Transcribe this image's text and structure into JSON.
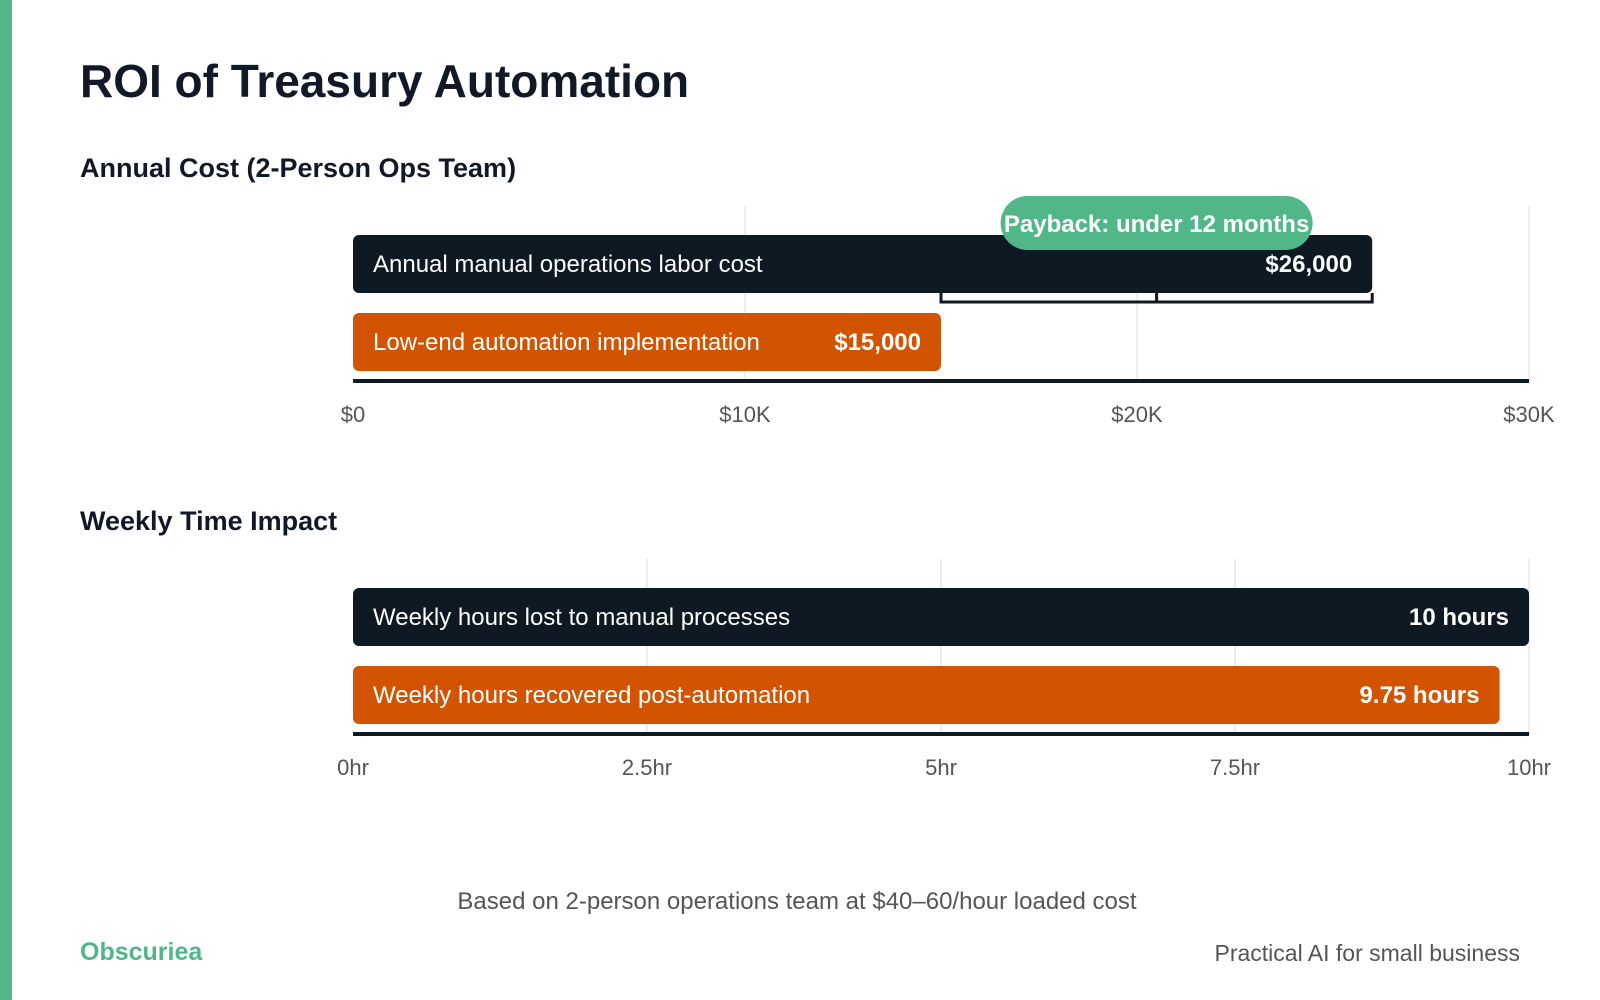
{
  "title": "ROI of Treasury Automation",
  "colors": {
    "accent": "#52b788",
    "dark": "#0f1923",
    "orange": "#d35400",
    "grid": "#e5e7eb",
    "tick": "#555555"
  },
  "chart_data": [
    {
      "type": "bar",
      "orientation": "horizontal",
      "title": "Annual Cost (2-Person Ops Team)",
      "xlim": [
        0,
        30000
      ],
      "ticks": [
        {
          "value": 0,
          "label": "$0"
        },
        {
          "value": 10000,
          "label": "$10K"
        },
        {
          "value": 20000,
          "label": "$20K"
        },
        {
          "value": 30000,
          "label": "$30K"
        }
      ],
      "grid": true,
      "bars": [
        {
          "label": "Annual manual operations labor cost",
          "value": 26000,
          "value_label": "$26,000",
          "color": "dark"
        },
        {
          "label": "Low-end automation implementation",
          "value": 15000,
          "value_label": "$15,000",
          "color": "orange"
        }
      ],
      "annotation": {
        "text": "Payback: under 12 months",
        "from": 15000,
        "to": 26000
      }
    },
    {
      "type": "bar",
      "orientation": "horizontal",
      "title": "Weekly Time Impact",
      "xlim": [
        0,
        10
      ],
      "ticks": [
        {
          "value": 0,
          "label": "0hr"
        },
        {
          "value": 2.5,
          "label": "2.5hr"
        },
        {
          "value": 5,
          "label": "5hr"
        },
        {
          "value": 7.5,
          "label": "7.5hr"
        },
        {
          "value": 10,
          "label": "10hr"
        }
      ],
      "grid": true,
      "bars": [
        {
          "label": "Weekly hours lost to manual processes",
          "value": 10,
          "value_label": "10 hours",
          "color": "dark"
        },
        {
          "label": "Weekly hours recovered post-automation",
          "value": 9.75,
          "value_label": "9.75 hours",
          "color": "orange"
        }
      ]
    }
  ],
  "footnote": "Based on 2-person operations team at $40–60/hour loaded cost",
  "brand": "Obscuriea",
  "tagline": "Practical AI for small business"
}
